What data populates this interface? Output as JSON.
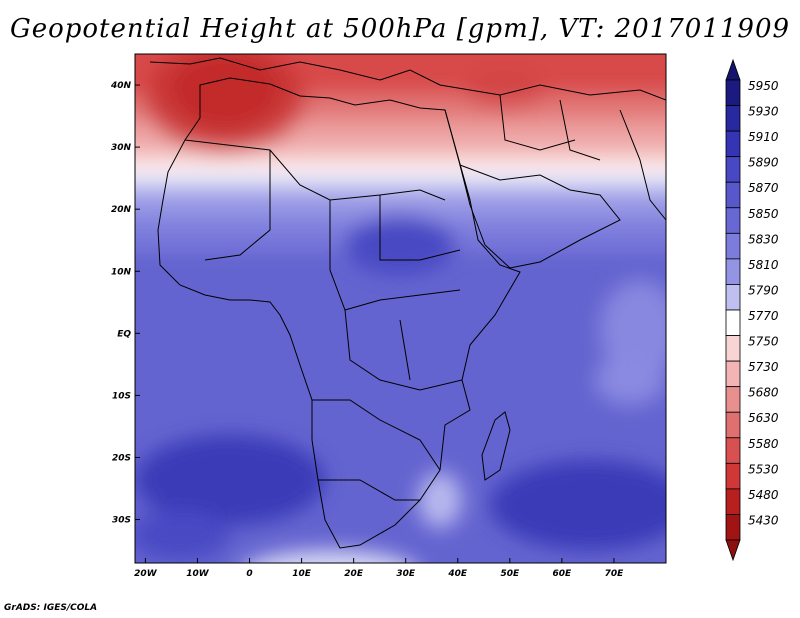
{
  "title": "Geopotential Height at 500hPa [gpm], VT: 2017011909",
  "credit": "GrADS: IGES/COLA",
  "variable": "Geopotential Height at 500hPa",
  "units": "gpm",
  "valid_time": "2017011909",
  "map_extent": {
    "lon": [
      -22,
      80
    ],
    "lat": [
      -37,
      45
    ]
  },
  "lat_ticks": [
    {
      "label": "40N",
      "lat": 40
    },
    {
      "label": "30N",
      "lat": 30
    },
    {
      "label": "20N",
      "lat": 20
    },
    {
      "label": "10N",
      "lat": 10
    },
    {
      "label": "EQ",
      "lat": 0
    },
    {
      "label": "10S",
      "lat": -10
    },
    {
      "label": "20S",
      "lat": -20
    },
    {
      "label": "30S",
      "lat": -30
    }
  ],
  "lon_ticks": [
    {
      "label": "20W",
      "lon": -20
    },
    {
      "label": "10W",
      "lon": -10
    },
    {
      "label": "0",
      "lon": 0
    },
    {
      "label": "10E",
      "lon": 10
    },
    {
      "label": "20E",
      "lon": 20
    },
    {
      "label": "30E",
      "lon": 30
    },
    {
      "label": "40E",
      "lon": 40
    },
    {
      "label": "50E",
      "lon": 50
    },
    {
      "label": "60E",
      "lon": 60
    },
    {
      "label": "70E",
      "lon": 70
    }
  ],
  "colorbar": {
    "levels": [
      "5950",
      "5930",
      "5910",
      "5890",
      "5870",
      "5850",
      "5830",
      "5810",
      "5790",
      "5770",
      "5750",
      "5730",
      "5680",
      "5630",
      "5580",
      "5530",
      "5480",
      "5430"
    ],
    "colors": [
      "#1a1a80",
      "#2828a0",
      "#3434b4",
      "#4848c4",
      "#5858cc",
      "#6868d4",
      "#7c7cdc",
      "#9494e4",
      "#c0c0f0",
      "#ffffff",
      "#f8d4d4",
      "#f2b4b4",
      "#e89090",
      "#e07070",
      "#d85050",
      "#d03838",
      "#b82020",
      "#a01414"
    ],
    "top_arrow_color": "#14146e",
    "bottom_arrow_color": "#8c1010"
  },
  "colors": {
    "land_outline": "#000000",
    "frame": "#000000"
  }
}
